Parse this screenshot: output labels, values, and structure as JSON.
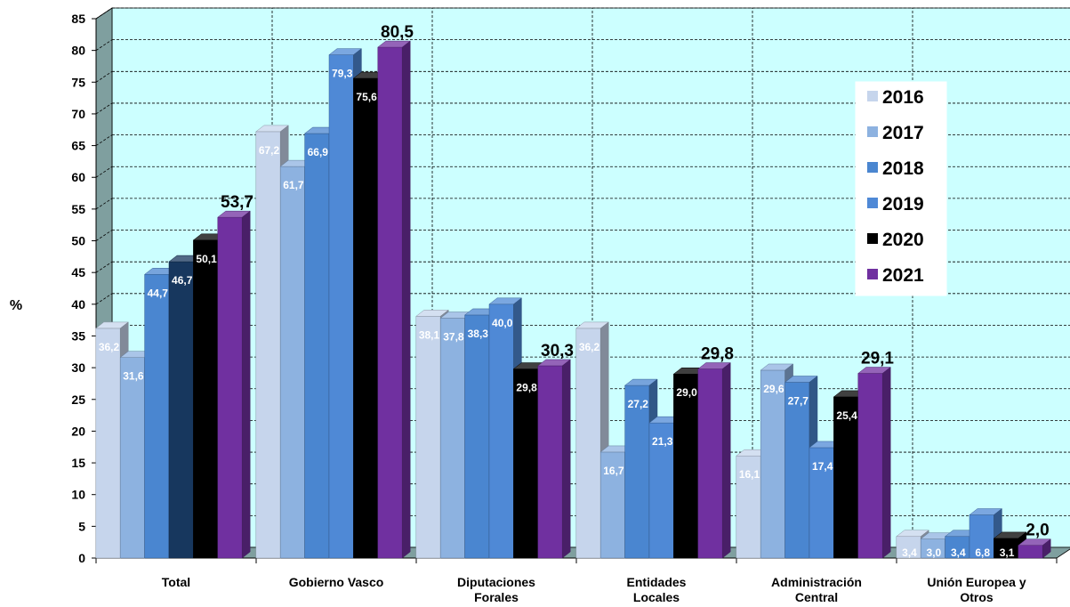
{
  "chart_data": {
    "type": "bar",
    "title": "",
    "xlabel": "",
    "ylabel": "%",
    "ylim": [
      0,
      85
    ],
    "ytick_step": 5,
    "grid": true,
    "legend_position": "right",
    "categories": [
      "Total",
      "Gobierno Vasco",
      "Diputaciones Forales",
      "Entidades Locales",
      "Administración Central",
      "Unión Europea y Otros"
    ],
    "category_labels": [
      [
        "Total"
      ],
      [
        "Gobierno Vasco"
      ],
      [
        "Diputaciones",
        "Forales"
      ],
      [
        "Entidades",
        "Locales"
      ],
      [
        "Administración",
        "Central"
      ],
      [
        "Unión Europea y",
        "Otros"
      ]
    ],
    "series": [
      {
        "name": "2016",
        "color": "#c6d5ec",
        "values": [
          36.2,
          67.2,
          38.1,
          36.2,
          16.1,
          3.4
        ],
        "labels": [
          "36,2",
          "67,2",
          "38,1",
          "36,2",
          "16,1",
          "3,4"
        ]
      },
      {
        "name": "2017",
        "color": "#8db2e0",
        "values": [
          31.6,
          61.7,
          37.8,
          16.7,
          29.6,
          3.0
        ],
        "labels": [
          "31,6",
          "61,7",
          "37,8",
          "16,7",
          "29,6",
          "3,0"
        ]
      },
      {
        "name": "2018",
        "color": "#4a86d0",
        "values": [
          44.7,
          66.9,
          38.3,
          27.2,
          27.7,
          3.4
        ],
        "labels": [
          "44,7",
          "66,9",
          "38,3",
          "27,2",
          "27,7",
          "3,4"
        ]
      },
      {
        "name": "2019",
        "color": "#4f89d6",
        "values": [
          46.7,
          79.3,
          40.0,
          21.3,
          17.4,
          6.8
        ],
        "labels": [
          "46,7",
          "79,3",
          "40,0",
          "21,3",
          "17,4",
          "6,8"
        ]
      },
      {
        "name": "2020",
        "color": "#000000",
        "values": [
          50.1,
          75.6,
          29.8,
          29.0,
          25.4,
          3.1
        ],
        "labels": [
          "50,1",
          "75,6",
          "29,8",
          "29,0",
          "25,4",
          "3,1"
        ]
      },
      {
        "name": "2021",
        "color": "#7030a0",
        "values": [
          53.7,
          80.5,
          30.3,
          29.8,
          29.1,
          2.0
        ],
        "labels": [
          "53,7",
          "80,5",
          "30,3",
          "29,8",
          "29,1",
          "2,0"
        ]
      }
    ],
    "total_bar_color_2019": "#17375e",
    "colors": {
      "plot_background": "#ccffff",
      "wall_side": "#7f9f9f",
      "floor": "#7f9f9f",
      "gridline": "#000000"
    }
  }
}
